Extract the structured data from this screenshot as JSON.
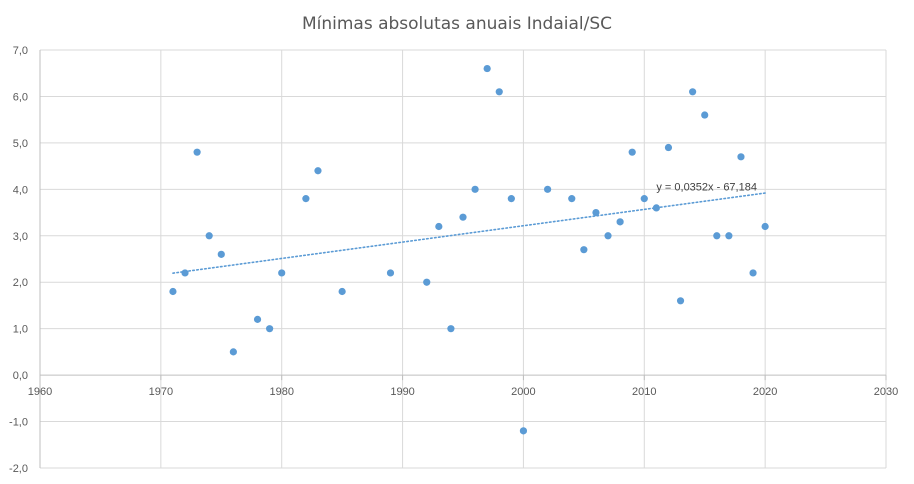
{
  "chart_data": {
    "type": "scatter",
    "title": "Mínimas absolutas anuais Indaial/SC",
    "xlabel": "",
    "ylabel": "",
    "xlim": [
      1960,
      2030
    ],
    "ylim": [
      -2,
      7
    ],
    "x_ticks": [
      1960,
      1970,
      1980,
      1990,
      2000,
      2010,
      2020,
      2030
    ],
    "y_ticks": [
      -2,
      -1,
      0,
      1,
      2,
      3,
      4,
      5,
      6,
      7
    ],
    "x_tick_labels": [
      "1960",
      "1970",
      "1980",
      "1990",
      "2000",
      "2010",
      "2020",
      "2030"
    ],
    "y_tick_labels": [
      "-2,0",
      "-1,0",
      "0,0",
      "1,0",
      "2,0",
      "3,0",
      "4,0",
      "5,0",
      "6,0",
      "7,0"
    ],
    "grid": true,
    "marker_color": "#5b9bd5",
    "trendline": {
      "type": "linear",
      "slope": 0.0352,
      "intercept": -67.184,
      "x_range": [
        1971,
        2020
      ],
      "label": "y = 0,0352x - 67,184",
      "color": "#5b9bd5"
    },
    "points": [
      {
        "x": 1971,
        "y": 1.8
      },
      {
        "x": 1972,
        "y": 2.2
      },
      {
        "x": 1973,
        "y": 4.8
      },
      {
        "x": 1974,
        "y": 3.0
      },
      {
        "x": 1975,
        "y": 2.6
      },
      {
        "x": 1976,
        "y": 0.5
      },
      {
        "x": 1978,
        "y": 1.2
      },
      {
        "x": 1979,
        "y": 1.0
      },
      {
        "x": 1980,
        "y": 2.2
      },
      {
        "x": 1982,
        "y": 3.8
      },
      {
        "x": 1983,
        "y": 4.4
      },
      {
        "x": 1985,
        "y": 1.8
      },
      {
        "x": 1989,
        "y": 2.2
      },
      {
        "x": 1992,
        "y": 2.0
      },
      {
        "x": 1993,
        "y": 3.2
      },
      {
        "x": 1994,
        "y": 1.0
      },
      {
        "x": 1995,
        "y": 3.4
      },
      {
        "x": 1996,
        "y": 4.0
      },
      {
        "x": 1997,
        "y": 6.6
      },
      {
        "x": 1998,
        "y": 6.1
      },
      {
        "x": 1999,
        "y": 3.8
      },
      {
        "x": 2000,
        "y": -1.2
      },
      {
        "x": 2002,
        "y": 4.0
      },
      {
        "x": 2004,
        "y": 3.8
      },
      {
        "x": 2005,
        "y": 2.7
      },
      {
        "x": 2006,
        "y": 3.5
      },
      {
        "x": 2007,
        "y": 3.0
      },
      {
        "x": 2008,
        "y": 3.3
      },
      {
        "x": 2009,
        "y": 4.8
      },
      {
        "x": 2010,
        "y": 3.8
      },
      {
        "x": 2011,
        "y": 3.6
      },
      {
        "x": 2012,
        "y": 4.9
      },
      {
        "x": 2013,
        "y": 1.6
      },
      {
        "x": 2014,
        "y": 6.1
      },
      {
        "x": 2015,
        "y": 5.6
      },
      {
        "x": 2016,
        "y": 3.0
      },
      {
        "x": 2017,
        "y": 3.0
      },
      {
        "x": 2018,
        "y": 4.7
      },
      {
        "x": 2019,
        "y": 2.2
      },
      {
        "x": 2020,
        "y": 3.2
      }
    ]
  }
}
